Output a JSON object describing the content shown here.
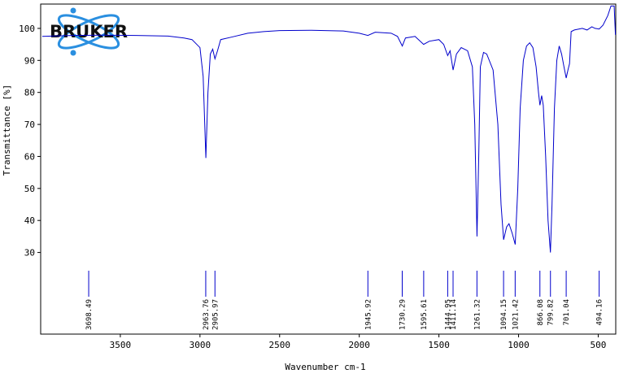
{
  "chart_data": {
    "type": "line",
    "logo": "BRUKER",
    "xlabel": "Wavenumber cm-1",
    "ylabel": "Transmittance [%]",
    "xlim": [
      4000,
      390
    ],
    "ylim": [
      4.5,
      107.6
    ],
    "xticks": [
      3500,
      3000,
      2500,
      2000,
      1500,
      1000,
      500
    ],
    "yticks": [
      30,
      40,
      50,
      60,
      70,
      80,
      90,
      100
    ],
    "color": "#0000cc",
    "x": [
      3990,
      3800,
      3600,
      3400,
      3200,
      3100,
      3050,
      3000,
      2980,
      2963,
      2950,
      2935,
      2920,
      2906,
      2890,
      2870,
      2800,
      2700,
      2600,
      2500,
      2300,
      2100,
      2000,
      1946,
      1900,
      1800,
      1760,
      1730,
      1710,
      1650,
      1596,
      1560,
      1500,
      1470,
      1445,
      1430,
      1411,
      1390,
      1360,
      1320,
      1290,
      1275,
      1261,
      1250,
      1240,
      1220,
      1200,
      1160,
      1130,
      1110,
      1094,
      1075,
      1060,
      1040,
      1021,
      1005,
      990,
      970,
      950,
      930,
      910,
      890,
      875,
      866,
      855,
      845,
      830,
      815,
      800,
      790,
      775,
      760,
      745,
      730,
      715,
      701,
      690,
      680,
      670,
      650,
      600,
      570,
      540,
      520,
      494,
      470,
      440,
      420,
      400,
      392
    ],
    "values": [
      97.5,
      97.8,
      97.9,
      97.8,
      97.6,
      97.0,
      96.5,
      94,
      85,
      59.5,
      80,
      92,
      93.5,
      90.5,
      93,
      96.5,
      97.3,
      98.5,
      99,
      99.3,
      99.4,
      99.2,
      98.5,
      97.8,
      98.8,
      98.5,
      97.5,
      94.5,
      97,
      97.5,
      95,
      96,
      96.5,
      95,
      91.5,
      93,
      87,
      92,
      94,
      93,
      88,
      70,
      35,
      60,
      88,
      92.5,
      92,
      87,
      70,
      45,
      34,
      38,
      39,
      36,
      32.5,
      50,
      75,
      90,
      94.5,
      95.5,
      94,
      88,
      80,
      76,
      79,
      76,
      60,
      40,
      30,
      45,
      75,
      90,
      94.5,
      92,
      88,
      84.5,
      87,
      89,
      99,
      99.5,
      100,
      99.5,
      100.5,
      100,
      99.8,
      101,
      104,
      107,
      107,
      98
    ],
    "peaks": [
      3698.49,
      2963.76,
      2905.97,
      1945.92,
      1730.29,
      1595.61,
      1444.95,
      1411.14,
      1261.32,
      1094.15,
      1021.42,
      866.08,
      799.82,
      701.04,
      494.16
    ]
  }
}
